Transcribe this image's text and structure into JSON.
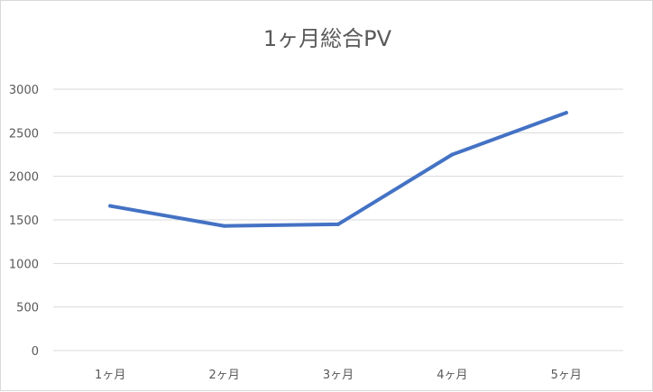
{
  "chart_data": {
    "type": "line",
    "title": "1ヶ月総合PV",
    "categories": [
      "1ヶ月",
      "2ヶ月",
      "3ヶ月",
      "4ヶ月",
      "5ヶ月"
    ],
    "series": [
      {
        "values": [
          1660,
          1430,
          1450,
          2250,
          2730
        ],
        "color": "#4472c4"
      }
    ],
    "yticks": [
      0,
      500,
      1000,
      1500,
      2000,
      2500,
      3000
    ],
    "ylim": [
      0,
      3000
    ],
    "grid": true,
    "gridColor": "#d9d9d9",
    "xlabel": "",
    "ylabel": ""
  }
}
